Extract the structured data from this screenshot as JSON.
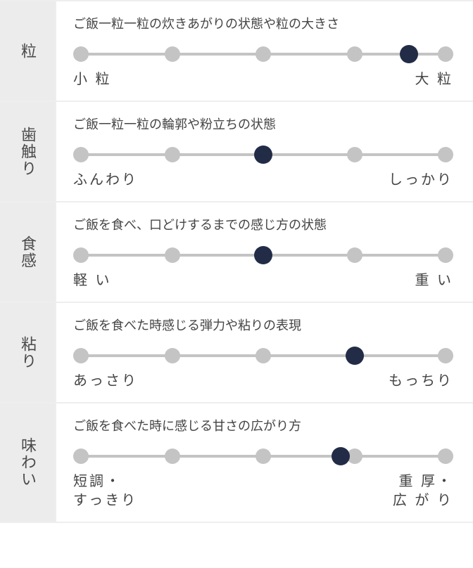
{
  "colors": {
    "label_bg": "#ececec",
    "track": "#c4c4c4",
    "dot": "#c4c4c4",
    "dot_selected": "#222c47",
    "text": "#444444",
    "divider": "#eeeeee",
    "background": "#ffffff"
  },
  "slider": {
    "positions": 5,
    "dot_size": 22,
    "selected_dot_size": 26,
    "track_height": 4
  },
  "rows": [
    {
      "id": "grain",
      "label": "粒",
      "description": "ご飯一粒一粒の炊きあがりの状態や粒の大きさ",
      "selected": 3.6,
      "left": "小 粒",
      "right": "大 粒"
    },
    {
      "id": "texture-teeth",
      "label": "歯触り",
      "description": "ご飯一粒一粒の輪郭や粉立ちの状態",
      "selected": 2,
      "left": "ふんわり",
      "right": "しっかり"
    },
    {
      "id": "mouthfeel",
      "label": "食感",
      "description": "ご飯を食べ、口どけするまでの感じ方の状態",
      "selected": 2,
      "left": "軽 い",
      "right": "重 い"
    },
    {
      "id": "stickiness",
      "label": "粘り",
      "description": "ご飯を食べた時感じる弾力や粘りの表現",
      "selected": 3,
      "left": "あっさり",
      "right": "もっちり"
    },
    {
      "id": "flavor",
      "label": "味わい",
      "description": "ご飯を食べた時に感じる甘さの広がり方",
      "selected": 2.85,
      "left": "短調・\nすっきり",
      "right": "重 厚・\n広 が り"
    }
  ]
}
